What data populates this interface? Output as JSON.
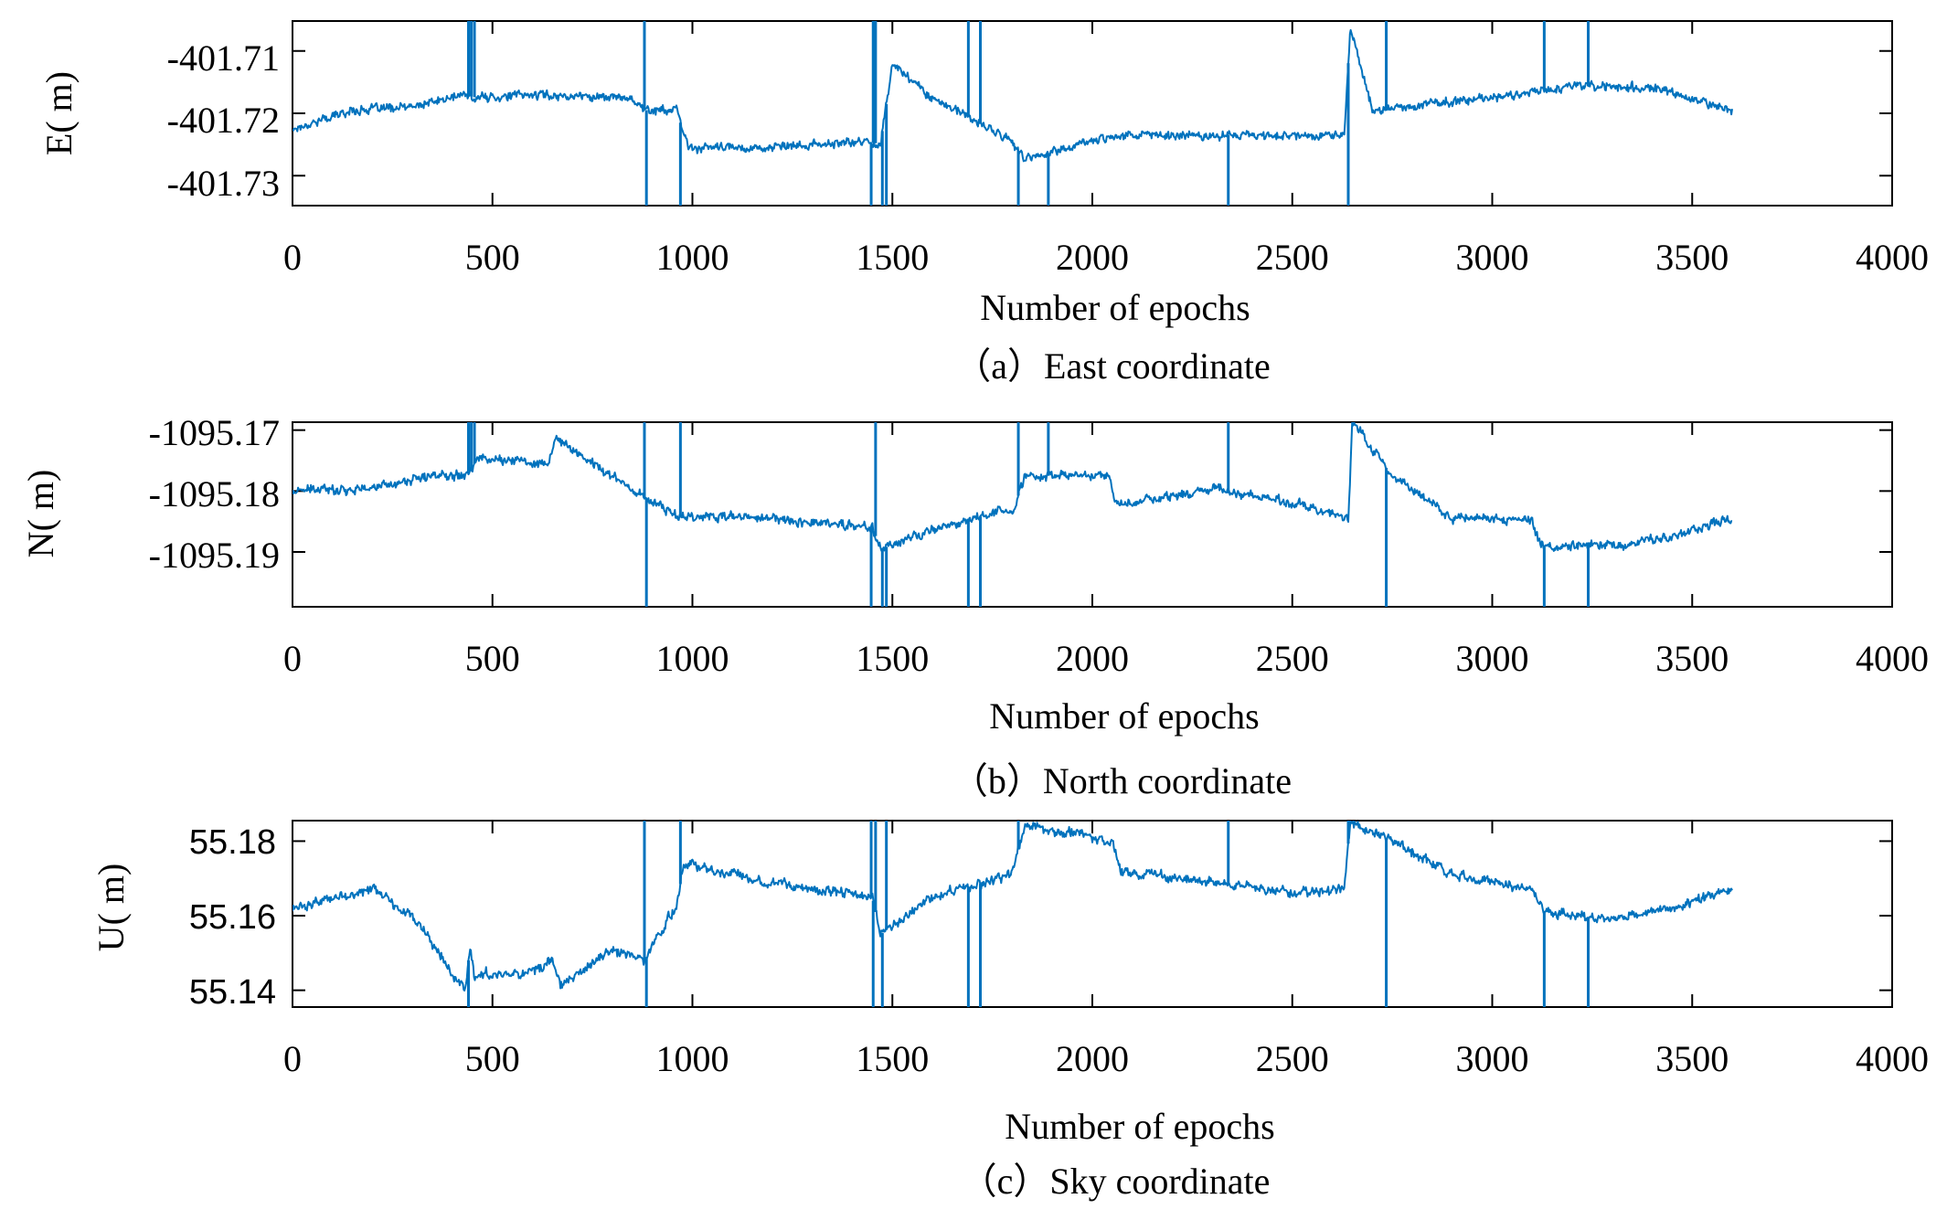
{
  "chart_data": [
    {
      "type": "line",
      "panel": "a",
      "caption": "（a）East coordinate",
      "xlabel": "Number of epochs",
      "ylabel": "E( m)",
      "xlim": [
        0,
        4000
      ],
      "ylim": [
        -401.7348,
        -401.7052
      ],
      "x_ticks": [
        0,
        500,
        1000,
        1500,
        2000,
        2500,
        3000,
        3500,
        4000
      ],
      "x_tick_labels": [
        "0",
        "500",
        "1000",
        "1500",
        "2000",
        "2500",
        "3000",
        "3500",
        "4000"
      ],
      "y_ticks": [
        -401.71,
        -401.72,
        -401.73
      ],
      "y_tick_labels": [
        "-401.71",
        "-401.72",
        "-401.73"
      ],
      "tick_font": "serif",
      "color": "#0072BD",
      "noise": 0.0009,
      "series": [
        {
          "name": "E",
          "x": [
            0,
            150,
            300,
            430,
            460,
            600,
            850,
            880,
            960,
            990,
            1200,
            1440,
            1470,
            1500,
            1600,
            1800,
            1830,
            2050,
            2300,
            2630,
            2645,
            2700,
            3000,
            3200,
            3400,
            3600
          ],
          "values": [
            -401.7225,
            -401.7195,
            -401.719,
            -401.717,
            -401.7175,
            -401.717,
            -401.7175,
            -401.7195,
            -401.7195,
            -401.7255,
            -401.7255,
            -401.7245,
            -401.725,
            -401.712,
            -401.7175,
            -401.7245,
            -401.7275,
            -401.7235,
            -401.7235,
            -401.7235,
            -401.7062,
            -401.7195,
            -401.7175,
            -401.7155,
            -401.716,
            -401.7195
          ]
        }
      ],
      "spikes": [
        {
          "x": 440,
          "y": -401.7052
        },
        {
          "x": 447,
          "y": -401.7052
        },
        {
          "x": 455,
          "y": -401.7052
        },
        {
          "x": 880,
          "y": -401.7052
        },
        {
          "x": 885,
          "y": -401.7348
        },
        {
          "x": 970,
          "y": -401.7348
        },
        {
          "x": 1447,
          "y": -401.7348
        },
        {
          "x": 1452,
          "y": -401.7052
        },
        {
          "x": 1458,
          "y": -401.7052
        },
        {
          "x": 1475,
          "y": -401.7348
        },
        {
          "x": 1485,
          "y": -401.7348
        },
        {
          "x": 1690,
          "y": -401.7052
        },
        {
          "x": 1720,
          "y": -401.7052
        },
        {
          "x": 1815,
          "y": -401.7348
        },
        {
          "x": 1890,
          "y": -401.7348
        },
        {
          "x": 2340,
          "y": -401.7348
        },
        {
          "x": 2640,
          "y": -401.7348
        },
        {
          "x": 2735,
          "y": -401.7052
        },
        {
          "x": 3130,
          "y": -401.7052
        },
        {
          "x": 3240,
          "y": -401.7052
        }
      ]
    },
    {
      "type": "line",
      "panel": "b",
      "caption": "（b）North coordinate",
      "xlabel": "Number of epochs",
      "ylabel": "N( m)",
      "xlim": [
        0,
        4000
      ],
      "ylim": [
        -1095.199,
        -1095.1687
      ],
      "x_ticks": [
        0,
        500,
        1000,
        1500,
        2000,
        2500,
        3000,
        3500,
        4000
      ],
      "x_tick_labels": [
        "0",
        "500",
        "1000",
        "1500",
        "2000",
        "2500",
        "3000",
        "3500",
        "4000"
      ],
      "y_ticks": [
        -1095.17,
        -1095.18,
        -1095.19
      ],
      "y_tick_labels": [
        "-1095.17",
        "-1095.18",
        "-1095.19"
      ],
      "tick_font": "serif",
      "color": "#0072BD",
      "noise": 0.001,
      "series": [
        {
          "name": "N",
          "x": [
            0,
            200,
            350,
            430,
            450,
            460,
            640,
            660,
            800,
            880,
            960,
            1200,
            1450,
            1470,
            1600,
            1780,
            1800,
            1830,
            2040,
            2060,
            2300,
            2500,
            2640,
            2650,
            2750,
            2900,
            3100,
            3120,
            3300,
            3450,
            3600
          ],
          "values": [
            -1095.18,
            -1095.1795,
            -1095.1775,
            -1095.177,
            -1095.1765,
            -1095.1745,
            -1095.1755,
            -1095.1715,
            -1095.1775,
            -1095.181,
            -1095.184,
            -1095.1845,
            -1095.186,
            -1095.1895,
            -1095.1865,
            -1095.183,
            -1095.184,
            -1095.1775,
            -1095.1775,
            -1095.1825,
            -1095.1795,
            -1095.182,
            -1095.1845,
            -1095.1687,
            -1095.1775,
            -1095.1845,
            -1095.1845,
            -1095.189,
            -1095.189,
            -1095.1875,
            -1095.1845
          ]
        }
      ],
      "spikes": [
        {
          "x": 440,
          "y": -1095.1687
        },
        {
          "x": 447,
          "y": -1095.1687
        },
        {
          "x": 455,
          "y": -1095.1687
        },
        {
          "x": 880,
          "y": -1095.1687
        },
        {
          "x": 885,
          "y": -1095.199
        },
        {
          "x": 970,
          "y": -1095.1687
        },
        {
          "x": 1447,
          "y": -1095.199
        },
        {
          "x": 1458,
          "y": -1095.1687
        },
        {
          "x": 1475,
          "y": -1095.199
        },
        {
          "x": 1485,
          "y": -1095.199
        },
        {
          "x": 1690,
          "y": -1095.199
        },
        {
          "x": 1720,
          "y": -1095.199
        },
        {
          "x": 1815,
          "y": -1095.1687
        },
        {
          "x": 1890,
          "y": -1095.1687
        },
        {
          "x": 2340,
          "y": -1095.1687
        },
        {
          "x": 2735,
          "y": -1095.199
        },
        {
          "x": 3130,
          "y": -1095.199
        },
        {
          "x": 3240,
          "y": -1095.199
        }
      ]
    },
    {
      "type": "line",
      "panel": "c",
      "caption": "（c）Sky coordinate",
      "xlabel": "Number of epochs",
      "ylabel": "U( m)",
      "xlim": [
        0,
        4000
      ],
      "ylim": [
        55.1355,
        55.1855
      ],
      "x_ticks": [
        0,
        500,
        1000,
        1500,
        2000,
        2500,
        3000,
        3500,
        4000
      ],
      "x_tick_labels": [
        "0",
        "500",
        "1000",
        "1500",
        "2000",
        "2500",
        "3000",
        "3500",
        "4000"
      ],
      "y_ticks": [
        55.18,
        55.16,
        55.14
      ],
      "y_tick_labels": [
        "55.18",
        "55.16",
        "55.14"
      ],
      "tick_font": "sans",
      "color": "#0072BD",
      "noise": 0.0017,
      "series": [
        {
          "name": "U",
          "x": [
            0,
            200,
            300,
            430,
            445,
            455,
            600,
            650,
            670,
            800,
            880,
            960,
            980,
            1200,
            1450,
            1470,
            1600,
            1800,
            1830,
            2050,
            2070,
            2300,
            2500,
            2630,
            2645,
            2750,
            2900,
            3100,
            3130,
            3300,
            3450,
            3600
          ],
          "values": [
            55.162,
            55.167,
            55.16,
            55.14,
            55.152,
            55.144,
            55.145,
            55.148,
            55.141,
            55.151,
            55.148,
            55.163,
            55.174,
            55.169,
            55.165,
            55.155,
            55.165,
            55.171,
            55.1845,
            55.18,
            55.172,
            55.169,
            55.166,
            55.167,
            55.1855,
            55.18,
            55.171,
            55.167,
            55.161,
            55.159,
            55.162,
            55.167
          ]
        }
      ],
      "spikes": [
        {
          "x": 440,
          "y": 55.1355
        },
        {
          "x": 880,
          "y": 55.1855
        },
        {
          "x": 885,
          "y": 55.1355
        },
        {
          "x": 970,
          "y": 55.1855
        },
        {
          "x": 1447,
          "y": 55.1855
        },
        {
          "x": 1452,
          "y": 55.1355
        },
        {
          "x": 1458,
          "y": 55.1855
        },
        {
          "x": 1475,
          "y": 55.1355
        },
        {
          "x": 1485,
          "y": 55.1855
        },
        {
          "x": 1690,
          "y": 55.1355
        },
        {
          "x": 1720,
          "y": 55.1355
        },
        {
          "x": 1815,
          "y": 55.1855
        },
        {
          "x": 2340,
          "y": 55.1855
        },
        {
          "x": 2640,
          "y": 55.1855
        },
        {
          "x": 2735,
          "y": 55.1355
        },
        {
          "x": 3130,
          "y": 55.1355
        },
        {
          "x": 3240,
          "y": 55.1355
        }
      ]
    }
  ]
}
